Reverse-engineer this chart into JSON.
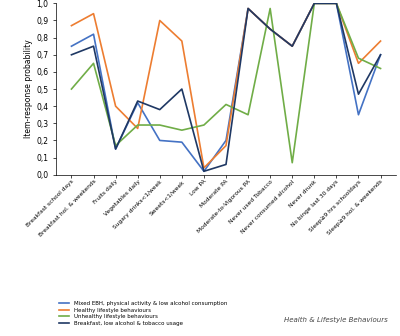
{
  "categories": [
    "Breakfast school days",
    "Breakfast hol. & weekends",
    "Fruits daily",
    "Vegetables daily",
    "Sugary drinks<1/week",
    "Sweets<1/week",
    "Low PA",
    "Moderate PA",
    "Moderate-to-Vigorous PA",
    "Never used Tobacco",
    "Never consumed alcohol",
    "Never drunk",
    "No binge last 30 days",
    "Sleep≥9 hrs schooldays",
    "Sleep≥9 hol. & weekends"
  ],
  "series": {
    "Mixed EBH, physical activity & low alcohol consumption": {
      "color": "#4472C4",
      "values": [
        0.75,
        0.82,
        0.15,
        0.42,
        0.2,
        0.19,
        0.02,
        0.2,
        0.97,
        0.85,
        0.75,
        1.0,
        1.0,
        0.35,
        0.7
      ]
    },
    "Healthy lifestyle behaviours": {
      "color": "#ED7D31",
      "values": [
        0.87,
        0.94,
        0.4,
        0.27,
        0.9,
        0.78,
        0.04,
        0.17,
        0.97,
        0.85,
        0.75,
        1.0,
        1.0,
        0.65,
        0.78
      ]
    },
    "Unhealthy lifestyle behaviours": {
      "color": "#70AD47",
      "values": [
        0.5,
        0.65,
        0.17,
        0.29,
        0.29,
        0.26,
        0.29,
        0.41,
        0.35,
        0.97,
        0.07,
        1.0,
        1.0,
        0.68,
        0.62
      ]
    },
    "Breakfast, low alcohol & tobacco usage": {
      "color": "#1F3864",
      "values": [
        0.7,
        0.75,
        0.15,
        0.43,
        0.38,
        0.5,
        0.02,
        0.06,
        0.97,
        0.85,
        0.75,
        1.0,
        1.0,
        0.47,
        0.7
      ]
    }
  },
  "ylabel": "Item-response probability",
  "ylim": [
    0.0,
    1.0
  ],
  "yticks": [
    0.0,
    0.1,
    0.2,
    0.3,
    0.4,
    0.5,
    0.6,
    0.7,
    0.8,
    0.9,
    1.0
  ],
  "yticklabels": [
    "0,0",
    "0,1",
    "0,2",
    "0,3",
    "0,4",
    "0,5",
    "0,6",
    "0,7",
    "0,8",
    "0,9",
    "1,0"
  ],
  "xlabel_right": "Health & Lifestyle Behaviours",
  "bg_color": "#FFFFFF",
  "linewidth": 1.2,
  "legend_labels": [
    "Mixed EBH, physical activity & low alcohol consumption",
    "Healthy lifestyle behaviours",
    "Unhealthy lifestyle behaviours",
    "Breakfast, low alcohol & tobacco usage"
  ]
}
